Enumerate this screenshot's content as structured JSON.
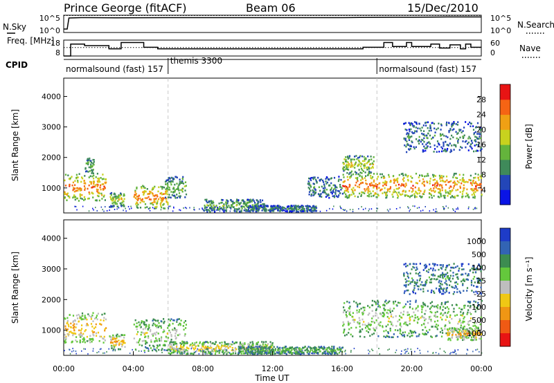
{
  "header": {
    "station": "Prince George (fitACF)",
    "beam": "Beam 06",
    "date": "15/Dec/2010"
  },
  "chart_data": [
    {
      "type": "line",
      "panel": "noise",
      "left_label": "N.Sky",
      "right_label": "N.Search",
      "left_ticks": [
        "10^5",
        "10^0"
      ],
      "right_ticks": [
        "10^5",
        "10^0"
      ],
      "series": [
        {
          "name": "N.Sky",
          "style": "solid",
          "x": [
            0,
            0.2,
            0.3,
            1,
            3,
            6,
            9,
            12,
            15,
            16,
            17,
            19,
            20,
            21,
            22,
            23,
            24
          ],
          "y": [
            1,
            1,
            4.2,
            4.3,
            4.25,
            4.3,
            4.3,
            4.3,
            4.3,
            4.3,
            4.35,
            4.4,
            4.4,
            4.45,
            4.5,
            4.5,
            4.5
          ]
        },
        {
          "name": "N.Search",
          "style": "dotted",
          "x": [
            0,
            24
          ],
          "y": [
            4.9,
            4.9
          ]
        }
      ],
      "ylim": [
        0,
        5
      ]
    },
    {
      "type": "line",
      "panel": "frequency",
      "left_label": "Freq. [MHz]",
      "right_label": "Nave",
      "left_ticks": [
        "18",
        "8"
      ],
      "right_ticks": [
        "60",
        "0"
      ],
      "series": [
        {
          "name": "Freq. [MHz]",
          "style": "solid",
          "x": [
            0,
            0.4,
            0.4,
            1.2,
            1.2,
            2.6,
            2.6,
            3.3,
            3.3,
            4.6,
            4.6,
            5.4,
            5.4,
            17.2,
            17.2,
            18.4,
            18.4,
            18.9,
            18.9,
            19.7,
            19.7,
            20.0,
            20.0,
            21.1,
            21.1,
            21.6,
            21.6,
            22.2,
            22.2,
            22.8,
            22.8,
            23.1,
            23.1,
            23.4,
            23.4,
            24
          ],
          "y": [
            8,
            8,
            15.5,
            15.5,
            14.5,
            14.5,
            12.5,
            12.5,
            16.5,
            16.5,
            13.5,
            13.5,
            12.5,
            12.5,
            13.5,
            13.5,
            16.5,
            16.5,
            14.0,
            14.0,
            16.5,
            16.5,
            14.0,
            14.0,
            15.5,
            15.5,
            13.0,
            13.0,
            15.0,
            15.0,
            12.5,
            12.5,
            15.5,
            15.5,
            13.5,
            13.5
          ]
        },
        {
          "name": "Nave",
          "style": "dotted",
          "x": [
            0,
            24
          ],
          "y": [
            32,
            32
          ]
        }
      ],
      "ylim": [
        8,
        18
      ]
    },
    {
      "type": "table",
      "panel": "cpid",
      "label": "CPID",
      "segments": [
        {
          "label": "normalsound (fast) 157",
          "start": 0,
          "end": 6.0
        },
        {
          "label": "themis 3300",
          "start": 6.0,
          "end": 18.0
        },
        {
          "label": "normalsound (fast) 157",
          "start": 18.0,
          "end": 24
        }
      ]
    },
    {
      "type": "heatmap",
      "panel": "power",
      "ylabel": "Slant Range [km]",
      "ylim": [
        180,
        4600
      ],
      "yticks": [
        1000,
        2000,
        3000,
        4000
      ],
      "colorbar_label": "Power [dB]",
      "colorbar_ticks": [
        "4",
        "8",
        "12",
        "16",
        "20",
        "24",
        "28"
      ],
      "colorbar_colors": [
        "#0a14e6",
        "#2346b8",
        "#3f8a5a",
        "#64b43c",
        "#c8d21e",
        "#f0a014",
        "#f56414",
        "#e81414"
      ],
      "scatter_regions": [
        {
          "t": [
            0,
            2.4
          ],
          "range": [
            600,
            1500
          ],
          "level": 6
        },
        {
          "t": [
            1.2,
            1.7
          ],
          "range": [
            1500,
            2000
          ],
          "level": 3
        },
        {
          "t": [
            2.6,
            3.5
          ],
          "range": [
            400,
            900
          ],
          "level": 4
        },
        {
          "t": [
            4.0,
            6.0
          ],
          "range": [
            350,
            1100
          ],
          "level": 6
        },
        {
          "t": [
            5.8,
            7.0
          ],
          "range": [
            700,
            1400
          ],
          "level": 3
        },
        {
          "t": [
            8.0,
            11.5
          ],
          "range": [
            250,
            650
          ],
          "level": 3
        },
        {
          "t": [
            10.5,
            14.5
          ],
          "range": [
            250,
            450
          ],
          "level": 2
        },
        {
          "t": [
            14.0,
            16.0
          ],
          "range": [
            700,
            1400
          ],
          "level": 2
        },
        {
          "t": [
            16.0,
            24.0
          ],
          "range": [
            700,
            1500
          ],
          "level": 6
        },
        {
          "t": [
            16.0,
            17.8
          ],
          "range": [
            1500,
            2100
          ],
          "level": 4
        },
        {
          "t": [
            19.5,
            24.0
          ],
          "range": [
            2200,
            3200
          ],
          "level": 2
        }
      ]
    },
    {
      "type": "heatmap",
      "panel": "velocity",
      "xlabel": "Time UT",
      "ylabel": "Slant Range [km]",
      "ylim": [
        180,
        4600
      ],
      "yticks": [
        1000,
        2000,
        3000,
        4000
      ],
      "xticks": [
        "00:00",
        "04:00",
        "08:00",
        "12:00",
        "16:00",
        "20:00",
        "00:00"
      ],
      "colorbar_label": "Velocity [m s⁻¹]",
      "colorbar_ticks": [
        "1000",
        "500",
        "100",
        "25",
        "-25",
        "-100",
        "-500",
        "-1000"
      ],
      "colorbar_colors": [
        "#1e3cc8",
        "#3264b4",
        "#3c8c50",
        "#64c83c",
        "#bebebe",
        "#f0c814",
        "#f09614",
        "#f05a14",
        "#e81414"
      ],
      "scatter_regions": [
        {
          "t": [
            0,
            2.4
          ],
          "range": [
            600,
            1600
          ],
          "level": 6
        },
        {
          "t": [
            2.6,
            3.5
          ],
          "range": [
            400,
            900
          ],
          "level": 6
        },
        {
          "t": [
            4.0,
            7.0
          ],
          "range": [
            350,
            1400
          ],
          "level": 4
        },
        {
          "t": [
            6.0,
            12.0
          ],
          "range": [
            250,
            650
          ],
          "level": 5
        },
        {
          "t": [
            10.0,
            16.0
          ],
          "range": [
            250,
            500
          ],
          "level": 3
        },
        {
          "t": [
            16.0,
            24.0
          ],
          "range": [
            800,
            2000
          ],
          "level": 4
        },
        {
          "t": [
            19.5,
            24.0
          ],
          "range": [
            2200,
            3200
          ],
          "level": 2
        },
        {
          "t": [
            22.0,
            24.0
          ],
          "range": [
            700,
            1100
          ],
          "level": 6
        }
      ]
    }
  ]
}
